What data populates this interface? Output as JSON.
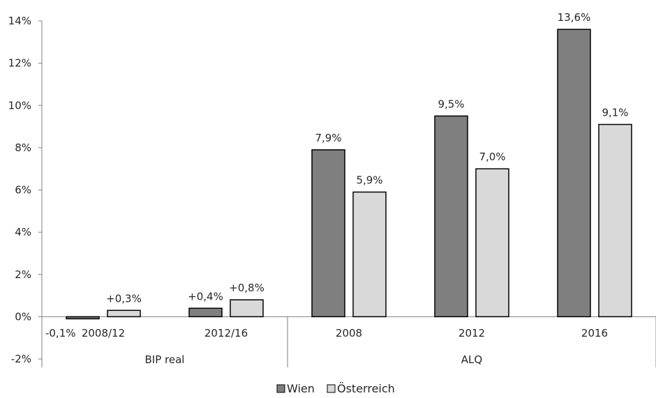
{
  "chart_data": {
    "type": "bar",
    "groups": [
      {
        "label": "BIP real",
        "categories": [
          "2008/12",
          "2012/16"
        ]
      },
      {
        "label": "ALQ",
        "categories": [
          "2008",
          "2012",
          "2016"
        ]
      }
    ],
    "categories": [
      "2008/12",
      "2012/16",
      "2008",
      "2012",
      "2016"
    ],
    "series": [
      {
        "name": "Wien",
        "color": "#7f7f7f",
        "values": [
          -0.1,
          0.4,
          7.9,
          9.5,
          13.6
        ],
        "labels": [
          "-0,1%",
          "+0,4%",
          "7,9%",
          "9,5%",
          "13,6%"
        ]
      },
      {
        "name": "Österreich",
        "color": "#d9d9d9",
        "values": [
          0.3,
          0.8,
          5.9,
          7.0,
          9.1
        ],
        "labels": [
          "+0,3%",
          "+0,8%",
          "5,9%",
          "7,0%",
          "9,1%"
        ]
      }
    ],
    "ylim": [
      -2,
      14
    ],
    "yticks": [
      -2,
      0,
      2,
      4,
      6,
      8,
      10,
      12,
      14
    ],
    "ytick_labels": [
      "-2%",
      "0%",
      "2%",
      "4%",
      "6%",
      "8%",
      "10%",
      "12%",
      "14%"
    ],
    "legend_position": "bottom",
    "grid": false
  }
}
